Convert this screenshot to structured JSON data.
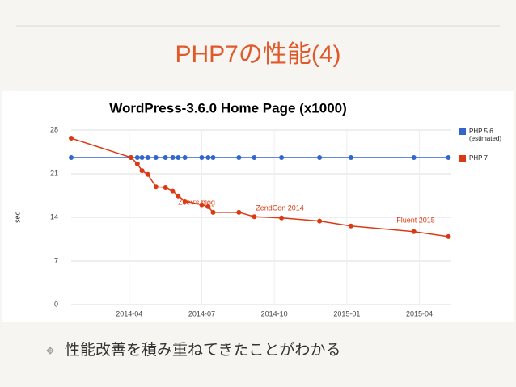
{
  "slide": {
    "title": "PHP7の性能(4)",
    "bullets": [
      "性能改善を積み重ねてきたことがわかる"
    ]
  },
  "chart_data": {
    "type": "line",
    "title": "WordPress-3.6.0 Home Page (x1000)",
    "y_label": "sec",
    "xlim": [
      2014.05,
      2015.36
    ],
    "xticks": [
      {
        "value": 2014.25,
        "label": "2014-04"
      },
      {
        "value": 2014.5,
        "label": "2014-07"
      },
      {
        "value": 2014.75,
        "label": "2014-10"
      },
      {
        "value": 2015.0,
        "label": "2015-01"
      },
      {
        "value": 2015.25,
        "label": "2015-04"
      }
    ],
    "ylim": [
      0,
      28
    ],
    "yticks": [
      0,
      7,
      14,
      21,
      28
    ],
    "grid": true,
    "legend": "right",
    "x": [
      2014.05,
      2014.256,
      2014.278,
      2014.294,
      2014.314,
      2014.342,
      2014.375,
      2014.4,
      2014.419,
      2014.442,
      2014.5,
      2014.522,
      2014.539,
      2014.628,
      2014.681,
      2014.775,
      2014.906,
      2015.014,
      2015.231,
      2015.35
    ],
    "series": [
      {
        "name": "PHP 5.6 (estimated)",
        "color": "#3366cc",
        "values": [
          23.6,
          23.6,
          23.6,
          23.6,
          23.6,
          23.6,
          23.6,
          23.6,
          23.6,
          23.6,
          23.6,
          23.6,
          23.6,
          23.6,
          23.6,
          23.6,
          23.6,
          23.6,
          23.6,
          23.6
        ]
      },
      {
        "name": "PHP 7",
        "color": "#dc3912",
        "values": [
          26.7,
          23.6,
          22.6,
          21.5,
          20.9,
          18.9,
          18.8,
          18.2,
          17.4,
          16.6,
          16.0,
          15.7,
          14.8,
          14.8,
          14.1,
          13.9,
          13.4,
          12.6,
          11.7,
          10.9
        ]
      }
    ],
    "annotations": [
      "Zeev's blog",
      "ZendCon 2014",
      "Fluent 2015"
    ]
  }
}
